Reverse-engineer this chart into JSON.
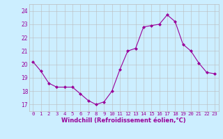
{
  "x": [
    0,
    1,
    2,
    3,
    4,
    5,
    6,
    7,
    8,
    9,
    10,
    11,
    12,
    13,
    14,
    15,
    16,
    17,
    18,
    19,
    20,
    21,
    22,
    23
  ],
  "y": [
    20.2,
    19.5,
    18.6,
    18.3,
    18.3,
    18.3,
    17.8,
    17.3,
    17.0,
    17.2,
    18.0,
    19.6,
    21.0,
    21.2,
    22.8,
    22.9,
    23.0,
    23.7,
    23.2,
    21.5,
    21.0,
    20.1,
    19.4,
    19.3
  ],
  "line_color": "#990099",
  "marker": "D",
  "marker_size": 2.0,
  "bg_color": "#cceeff",
  "grid_color": "#bbbbbb",
  "xlabel": "Windchill (Refroidissement éolien,°C)",
  "xlabel_color": "#990099",
  "xlim": [
    -0.5,
    23.5
  ],
  "ylim": [
    16.5,
    24.5
  ],
  "yticks": [
    17,
    18,
    19,
    20,
    21,
    22,
    23,
    24
  ],
  "xticks": [
    0,
    1,
    2,
    3,
    4,
    5,
    6,
    7,
    8,
    9,
    10,
    11,
    12,
    13,
    14,
    15,
    16,
    17,
    18,
    19,
    20,
    21,
    22,
    23
  ],
  "tick_fontsize": 5.2,
  "xlabel_fontsize": 6.0
}
